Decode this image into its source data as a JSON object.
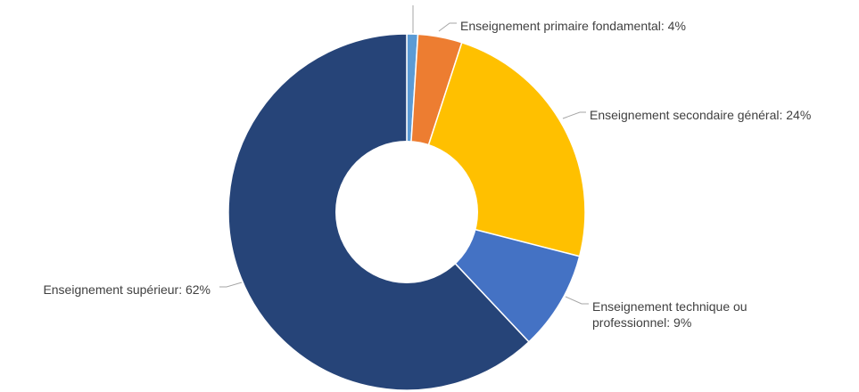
{
  "chart_data": {
    "type": "pie",
    "variant": "donut",
    "title": "",
    "legend": "none",
    "slices": [
      {
        "label": "",
        "value": 1,
        "color": "#5b9bd5",
        "label_lines": [],
        "label_side": "none"
      },
      {
        "label": "Enseignement primaire fondamental: 4%",
        "value": 4,
        "color": "#ed7d31",
        "label_lines": [
          "Enseignement primaire fondamental: 4%"
        ],
        "label_side": "right"
      },
      {
        "label": "Enseignement secondaire général: 24%",
        "value": 24,
        "color": "#ffc000",
        "label_lines": [
          "Enseignement secondaire général: 24%"
        ],
        "label_side": "right"
      },
      {
        "label": "Enseignement technique ou professionnel: 9%",
        "value": 9,
        "color": "#4472c4",
        "label_lines": [
          "Enseignement technique ou",
          "professionnel: 9%"
        ],
        "label_side": "right"
      },
      {
        "label": "Enseignement supérieur: 62%",
        "value": 62,
        "color": "#264478",
        "label_lines": [
          "Enseignement supérieur: 62%"
        ],
        "label_side": "left"
      }
    ]
  }
}
